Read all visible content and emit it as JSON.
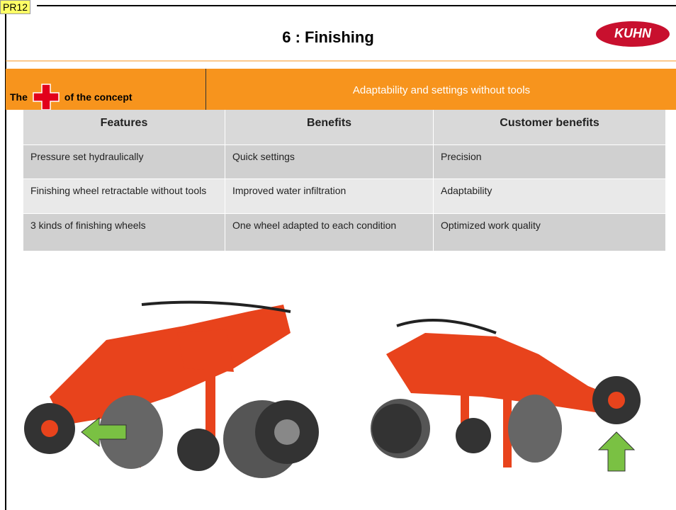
{
  "badge": "PR12",
  "header": {
    "title": "6 : Finishing",
    "logo": "KUHN"
  },
  "banner": {
    "left_before": "The",
    "left_after": "of the concept",
    "right": "Adaptability and settings without tools"
  },
  "table": {
    "columns": [
      "Features",
      "Benefits",
      "Customer benefits"
    ],
    "rows": [
      [
        "Pressure set hydraulically",
        "Quick settings",
        "Precision"
      ],
      [
        "Finishing wheel retractable without tools",
        "Improved water infiltration",
        "Adaptability"
      ],
      [
        "3 kinds of finishing wheels",
        "One wheel adapted to each condition",
        "Optimized work quality"
      ]
    ]
  }
}
